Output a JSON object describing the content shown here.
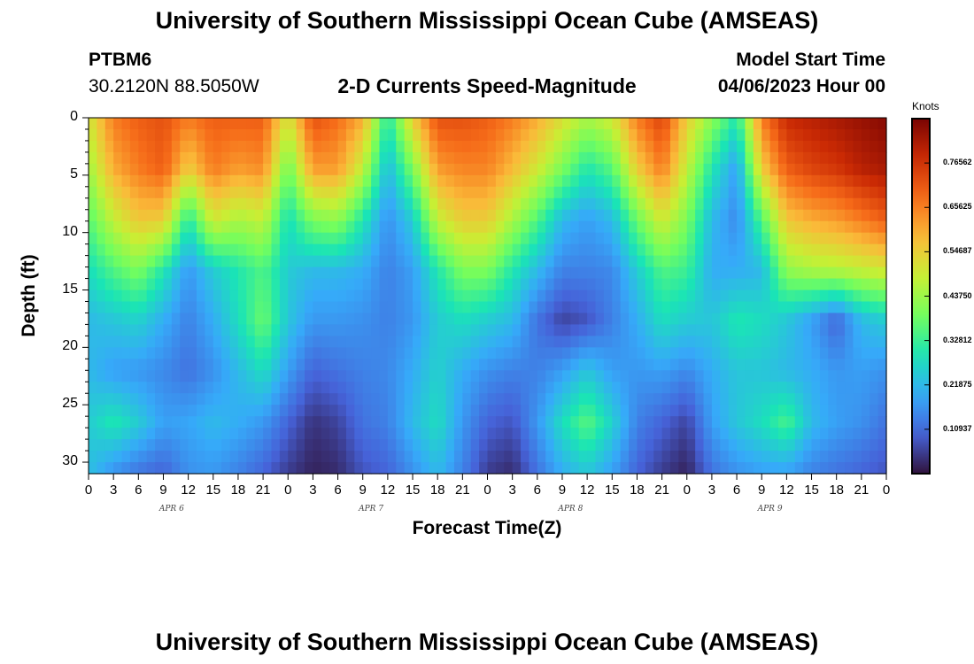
{
  "header": {
    "title": "University of Southern Mississippi Ocean Cube (AMSEAS)",
    "station_id": "PTBM6",
    "coordinates": "30.2120N  88.5050W",
    "plot_name": "2-D Currents Speed-Magnitude",
    "model_start_label": "Model Start Time",
    "model_start_value": "04/06/2023 Hour 00"
  },
  "footer": {
    "title": "University of Southern Mississippi Ocean Cube (AMSEAS)"
  },
  "colors": {
    "palette": [
      "#30123b",
      "#4662d8",
      "#36aaf9",
      "#1ae4b6",
      "#72fe5e",
      "#c8ef34",
      "#faba39",
      "#f66b19",
      "#ca2a04",
      "#7a0403"
    ]
  },
  "chart_data": {
    "type": "heatmap",
    "xlabel": "Forecast Time(Z)",
    "ylabel": "Depth (ft)",
    "x_range_hours": [
      0,
      96
    ],
    "ylim": [
      0,
      31
    ],
    "y_ticks": [
      "0",
      "5",
      "10",
      "15",
      "20",
      "25",
      "30"
    ],
    "x_ticks": [
      "0",
      "3",
      "6",
      "9",
      "12",
      "15",
      "18",
      "21",
      "0",
      "3",
      "6",
      "9",
      "12",
      "15",
      "18",
      "21",
      "0",
      "3",
      "6",
      "9",
      "12",
      "15",
      "18",
      "21",
      "0",
      "3",
      "6",
      "9",
      "12",
      "15",
      "18",
      "21",
      "0"
    ],
    "day_labels": [
      "APR 6",
      "APR 7",
      "APR 8",
      "APR 9"
    ],
    "colorbar": {
      "unit": "Knots",
      "range": [
        0.0,
        0.875
      ],
      "ticks": [
        "0.76562",
        "0.65625",
        "0.54687",
        "0.43750",
        "0.32812",
        "0.21875",
        "0.10937"
      ]
    },
    "profiles": [
      {
        "hour": 0,
        "speeds": [
          0.5,
          0.44,
          0.36,
          0.28,
          0.22,
          0.22,
          0.25,
          0.23
        ]
      },
      {
        "hour": 3,
        "speeds": [
          0.66,
          0.6,
          0.48,
          0.35,
          0.24,
          0.18,
          0.3,
          0.16
        ]
      },
      {
        "hour": 6,
        "speeds": [
          0.7,
          0.66,
          0.56,
          0.4,
          0.26,
          0.17,
          0.25,
          0.12
        ]
      },
      {
        "hour": 9,
        "speeds": [
          0.72,
          0.7,
          0.55,
          0.3,
          0.2,
          0.15,
          0.18,
          0.1
        ]
      },
      {
        "hour": 12,
        "speeds": [
          0.66,
          0.55,
          0.3,
          0.17,
          0.14,
          0.12,
          0.19,
          0.16
        ]
      },
      {
        "hour": 15,
        "speeds": [
          0.7,
          0.66,
          0.5,
          0.25,
          0.2,
          0.16,
          0.22,
          0.17
        ]
      },
      {
        "hour": 18,
        "speeds": [
          0.7,
          0.62,
          0.45,
          0.3,
          0.28,
          0.22,
          0.2,
          0.14
        ]
      },
      {
        "hour": 21,
        "speeds": [
          0.7,
          0.64,
          0.48,
          0.35,
          0.38,
          0.28,
          0.17,
          0.1
        ]
      },
      {
        "hour": 24,
        "speeds": [
          0.5,
          0.38,
          0.28,
          0.25,
          0.24,
          0.18,
          0.1,
          0.05
        ]
      },
      {
        "hour": 27,
        "speeds": [
          0.72,
          0.62,
          0.4,
          0.22,
          0.17,
          0.1,
          0.04,
          0.02
        ]
      },
      {
        "hour": 30,
        "speeds": [
          0.68,
          0.62,
          0.42,
          0.22,
          0.17,
          0.12,
          0.06,
          0.03
        ]
      },
      {
        "hour": 33,
        "speeds": [
          0.6,
          0.48,
          0.3,
          0.2,
          0.16,
          0.14,
          0.12,
          0.08
        ]
      },
      {
        "hour": 36,
        "speeds": [
          0.3,
          0.22,
          0.16,
          0.14,
          0.14,
          0.15,
          0.14,
          0.1
        ]
      },
      {
        "hour": 39,
        "speeds": [
          0.55,
          0.4,
          0.25,
          0.18,
          0.17,
          0.2,
          0.22,
          0.16
        ]
      },
      {
        "hour": 42,
        "speeds": [
          0.72,
          0.62,
          0.48,
          0.3,
          0.25,
          0.26,
          0.28,
          0.22
        ]
      },
      {
        "hour": 45,
        "speeds": [
          0.72,
          0.65,
          0.55,
          0.4,
          0.28,
          0.2,
          0.17,
          0.14
        ]
      },
      {
        "hour": 48,
        "speeds": [
          0.7,
          0.65,
          0.55,
          0.4,
          0.25,
          0.16,
          0.1,
          0.05
        ]
      },
      {
        "hour": 51,
        "speeds": [
          0.66,
          0.58,
          0.45,
          0.3,
          0.22,
          0.14,
          0.08,
          0.03
        ]
      },
      {
        "hour": 54,
        "speeds": [
          0.6,
          0.5,
          0.35,
          0.22,
          0.12,
          0.14,
          0.17,
          0.12
        ]
      },
      {
        "hour": 57,
        "speeds": [
          0.52,
          0.4,
          0.22,
          0.14,
          0.06,
          0.18,
          0.28,
          0.2
        ]
      },
      {
        "hour": 60,
        "speeds": [
          0.45,
          0.3,
          0.18,
          0.14,
          0.08,
          0.24,
          0.36,
          0.24
        ]
      },
      {
        "hour": 63,
        "speeds": [
          0.5,
          0.36,
          0.22,
          0.15,
          0.14,
          0.18,
          0.26,
          0.18
        ]
      },
      {
        "hour": 66,
        "speeds": [
          0.66,
          0.55,
          0.38,
          0.25,
          0.2,
          0.17,
          0.14,
          0.1
        ]
      },
      {
        "hour": 69,
        "speeds": [
          0.74,
          0.66,
          0.5,
          0.35,
          0.28,
          0.18,
          0.1,
          0.05
        ]
      },
      {
        "hour": 72,
        "speeds": [
          0.55,
          0.48,
          0.4,
          0.33,
          0.25,
          0.15,
          0.06,
          0.02
        ]
      },
      {
        "hour": 75,
        "speeds": [
          0.42,
          0.3,
          0.22,
          0.2,
          0.24,
          0.2,
          0.18,
          0.12
        ]
      },
      {
        "hour": 78,
        "speeds": [
          0.3,
          0.18,
          0.15,
          0.2,
          0.3,
          0.24,
          0.24,
          0.16
        ]
      },
      {
        "hour": 81,
        "speeds": [
          0.66,
          0.55,
          0.35,
          0.22,
          0.28,
          0.24,
          0.28,
          0.18
        ]
      },
      {
        "hour": 84,
        "speeds": [
          0.78,
          0.7,
          0.56,
          0.42,
          0.24,
          0.22,
          0.34,
          0.18
        ]
      },
      {
        "hour": 87,
        "speeds": [
          0.8,
          0.74,
          0.6,
          0.45,
          0.18,
          0.2,
          0.22,
          0.14
        ]
      },
      {
        "hour": 90,
        "speeds": [
          0.82,
          0.76,
          0.62,
          0.46,
          0.1,
          0.17,
          0.18,
          0.12
        ]
      },
      {
        "hour": 93,
        "speeds": [
          0.84,
          0.8,
          0.66,
          0.48,
          0.22,
          0.18,
          0.16,
          0.1
        ]
      },
      {
        "hour": 96,
        "speeds": [
          0.86,
          0.82,
          0.7,
          0.5,
          0.25,
          0.16,
          0.12,
          0.08
        ]
      }
    ],
    "profile_depths": [
      0,
      4.4,
      8.9,
      13.3,
      17.7,
      22.1,
      26.6,
      31
    ]
  }
}
